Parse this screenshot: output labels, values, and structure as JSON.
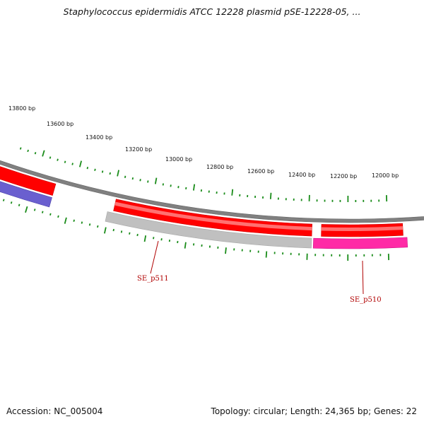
{
  "header": {
    "title": "Staphylococcus epidermidis ATCC 12228 plasmid pSE-12228-05, ..."
  },
  "footer": {
    "accession": "Accession: NC_005004",
    "topology": "Topology: circular; Length: 24,365 bp; Genes: 22"
  },
  "scale": {
    "tick_labels": [
      "13800 bp",
      "13600 bp",
      "13400 bp",
      "13200 bp",
      "13000 bp",
      "12800 bp",
      "12600 bp",
      "12400 bp",
      "12200 bp",
      "12000 bp"
    ]
  },
  "genes": [
    {
      "name": "SE_p511"
    },
    {
      "name": "SE_p510"
    }
  ],
  "colors": {
    "forward_gene": "#ff0000",
    "reverse_gene": "#ff2aa6",
    "reverse_gene_gray": "#c0c0c0",
    "other_gene": "#6a5fcf",
    "backbone": "#808080",
    "tick": "#1a8c1a",
    "gene_label": "#b00000"
  }
}
